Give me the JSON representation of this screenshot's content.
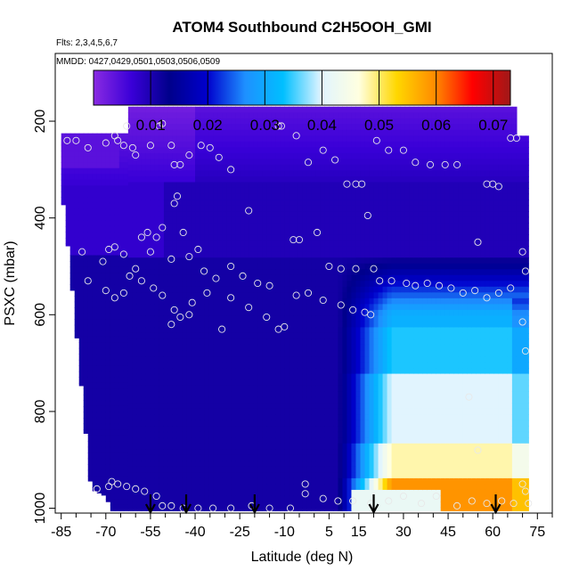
{
  "chart_data": {
    "type": "heatmap",
    "title": "ATOM4 Southbound C2H5OOH_GMI",
    "subtitle_flights": "Flts: 2,3,4,5,6,7",
    "subtitle_dates": "MMDD: 0427,0429,0501,0503,0506,0509",
    "xlabel": "Latitude (deg N)",
    "ylabel": "PSXC (mbar)",
    "xlim": [
      -87,
      80
    ],
    "ylim": [
      1010,
      60
    ],
    "x_ticks": [
      -85,
      -70,
      -55,
      -40,
      -25,
      -10,
      5,
      15,
      30,
      45,
      60,
      75
    ],
    "x_tick_labels": [
      "-85",
      "-70",
      "-55",
      "-40",
      "-25",
      "-10",
      "5",
      "15",
      "30",
      "45",
      "60",
      "75"
    ],
    "x_minor_ticks": [
      -80,
      -75,
      -65,
      -60,
      -50,
      -45,
      -35,
      -30,
      -20,
      -15,
      -5,
      0,
      10,
      20,
      25,
      35,
      40,
      50,
      55,
      65,
      70,
      80
    ],
    "y_ticks": [
      200,
      400,
      600,
      800,
      1000
    ],
    "y_tick_labels": [
      "200",
      "400",
      "600",
      "800",
      "1000"
    ],
    "colorbar": {
      "range": [
        0.0,
        0.073
      ],
      "ticks": [
        0.01,
        0.02,
        0.03,
        0.04,
        0.05,
        0.06,
        0.07
      ],
      "tick_labels": [
        "0.01",
        "0.02",
        "0.03",
        "0.04",
        "0.05",
        "0.06",
        "0.07"
      ],
      "colors": [
        "#8a2be2",
        "#3a00d8",
        "#00008b",
        "#0000cd",
        "#1e90ff",
        "#00bfff",
        "#e0f4ff",
        "#ffffe0",
        "#ffd700",
        "#ff8c00",
        "#ff0000",
        "#a01818"
      ]
    },
    "curtain_extent": {
      "lat_min": -85,
      "lat_max": 72,
      "top_pressure_by_lat": [
        [
          -85,
          225
        ],
        [
          -65,
          225
        ],
        [
          -62,
          170
        ],
        [
          68,
          170
        ],
        [
          72,
          230
        ]
      ],
      "bottom_pressure_by_lat": [
        [
          -85,
          330
        ],
        [
          -82,
          500
        ],
        [
          -75,
          960
        ],
        [
          -70,
          975
        ],
        [
          -68,
          1005
        ],
        [
          72,
          1005
        ]
      ]
    },
    "field_model": "approx values: upper/southern ~0.002-0.008 (purple), mid/lower troposphere ~0.009-0.013 (dark blue), northern lower troposphere ~0.02-0.035 (light blue), near-surface 10-40N ~0.04-0.045 (pale yellow)",
    "flight_marker_latitudes": [
      -55,
      -43,
      -20,
      20,
      61
    ],
    "sample_points": [
      [
        -83,
        240
      ],
      [
        -80,
        240
      ],
      [
        -76,
        255
      ],
      [
        -70,
        245
      ],
      [
        -67,
        230
      ],
      [
        -66,
        240
      ],
      [
        -64,
        250
      ],
      [
        -63,
        210
      ],
      [
        -61,
        255
      ],
      [
        -60,
        270
      ],
      [
        -55,
        250
      ],
      [
        -52,
        210
      ],
      [
        -51,
        205
      ],
      [
        -48,
        250
      ],
      [
        -47,
        290
      ],
      [
        -45,
        290
      ],
      [
        -42,
        270
      ],
      [
        -38,
        250
      ],
      [
        -35,
        255
      ],
      [
        -32,
        275
      ],
      [
        -28,
        300
      ],
      [
        -22,
        385
      ],
      [
        -12,
        210
      ],
      [
        -11,
        210
      ],
      [
        -6,
        230
      ],
      [
        -2,
        285
      ],
      [
        3,
        260
      ],
      [
        7,
        280
      ],
      [
        11,
        330
      ],
      [
        14,
        330
      ],
      [
        16,
        330
      ],
      [
        18,
        395
      ],
      [
        21,
        240
      ],
      [
        25,
        260
      ],
      [
        30,
        260
      ],
      [
        34,
        285
      ],
      [
        39,
        290
      ],
      [
        44,
        290
      ],
      [
        48,
        290
      ],
      [
        55,
        450
      ],
      [
        58,
        330
      ],
      [
        60,
        330
      ],
      [
        62,
        335
      ],
      [
        66,
        235
      ],
      [
        68,
        235
      ],
      [
        -78,
        470
      ],
      [
        -76,
        530
      ],
      [
        -71,
        490
      ],
      [
        -69,
        465
      ],
      [
        -67,
        460
      ],
      [
        -64,
        475
      ],
      [
        -62,
        520
      ],
      [
        -60,
        505
      ],
      [
        -58,
        440
      ],
      [
        -56,
        430
      ],
      [
        -55,
        470
      ],
      [
        -53,
        440
      ],
      [
        -51,
        420
      ],
      [
        -48,
        485
      ],
      [
        -47,
        370
      ],
      [
        -46,
        355
      ],
      [
        -44,
        430
      ],
      [
        -42,
        480
      ],
      [
        -39,
        465
      ],
      [
        -37,
        510
      ],
      [
        -33,
        525
      ],
      [
        -28,
        500
      ],
      [
        -24,
        520
      ],
      [
        -19,
        535
      ],
      [
        -15,
        540
      ],
      [
        -7,
        445
      ],
      [
        -5,
        445
      ],
      [
        1,
        430
      ],
      [
        5,
        500
      ],
      [
        9,
        505
      ],
      [
        14,
        505
      ],
      [
        20,
        505
      ],
      [
        -70,
        550
      ],
      [
        -67,
        565
      ],
      [
        -64,
        555
      ],
      [
        -58,
        530
      ],
      [
        -54,
        545
      ],
      [
        -51,
        560
      ],
      [
        -47,
        590
      ],
      [
        -45,
        605
      ],
      [
        -41,
        575
      ],
      [
        -36,
        555
      ],
      [
        -28,
        565
      ],
      [
        -22,
        585
      ],
      [
        -16,
        605
      ],
      [
        -10,
        625
      ],
      [
        -6,
        560
      ],
      [
        -2,
        555
      ],
      [
        3,
        570
      ],
      [
        9,
        580
      ],
      [
        13,
        590
      ],
      [
        17,
        595
      ],
      [
        19,
        600
      ],
      [
        22,
        530
      ],
      [
        26,
        530
      ],
      [
        31,
        535
      ],
      [
        34,
        540
      ],
      [
        38,
        535
      ],
      [
        42,
        540
      ],
      [
        46,
        545
      ],
      [
        50,
        555
      ],
      [
        54,
        550
      ],
      [
        58,
        565
      ],
      [
        62,
        555
      ],
      [
        66,
        545
      ],
      [
        -48,
        620
      ],
      [
        -42,
        600
      ],
      [
        -31,
        630
      ],
      [
        -12,
        630
      ],
      [
        52,
        770
      ],
      [
        55,
        880
      ],
      [
        70,
        615
      ],
      [
        71,
        675
      ],
      [
        71,
        510
      ],
      [
        70,
        470
      ],
      [
        -73,
        960
      ],
      [
        -69,
        955
      ],
      [
        -68,
        945
      ],
      [
        -66,
        950
      ],
      [
        -63,
        955
      ],
      [
        -60,
        960
      ],
      [
        -57,
        965
      ],
      [
        -53,
        975
      ],
      [
        -51,
        995
      ],
      [
        -48,
        995
      ],
      [
        -44,
        1000
      ],
      [
        -39,
        1000
      ],
      [
        -34,
        1000
      ],
      [
        -28,
        1000
      ],
      [
        -21,
        995
      ],
      [
        -15,
        1000
      ],
      [
        -8,
        1000
      ],
      [
        -3,
        950
      ],
      [
        -3,
        970
      ],
      [
        3,
        980
      ],
      [
        8,
        985
      ],
      [
        13,
        985
      ],
      [
        19,
        990
      ],
      [
        25,
        985
      ],
      [
        30,
        975
      ],
      [
        36,
        990
      ],
      [
        41,
        975
      ],
      [
        48,
        995
      ],
      [
        53,
        985
      ],
      [
        58,
        990
      ],
      [
        63,
        985
      ],
      [
        67,
        990
      ],
      [
        70,
        950
      ],
      [
        71,
        965
      ],
      [
        72,
        990
      ]
    ]
  }
}
